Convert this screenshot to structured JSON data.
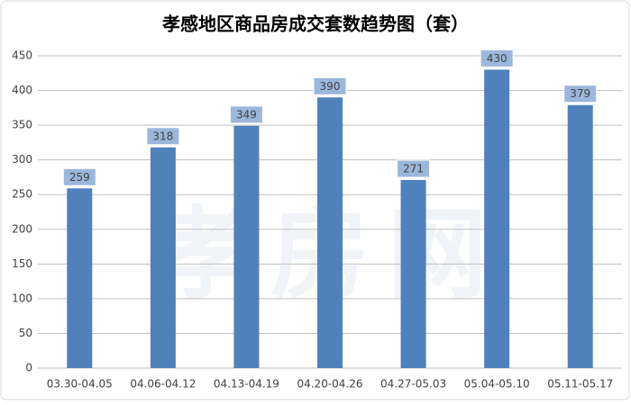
{
  "chart_data": {
    "type": "bar",
    "title": "孝感地区商品房成交套数趋势图（套）",
    "categories": [
      "03.30-04.05",
      "04.06-04.12",
      "04.13-04.19",
      "04.20-04.26",
      "04.27-05.03",
      "05.04-05.10",
      "05.11-05.17"
    ],
    "values": [
      259,
      318,
      349,
      390,
      271,
      430,
      379
    ],
    "color": "#4f81bd",
    "ylim": [
      0,
      450
    ],
    "yticks": [
      0,
      50,
      100,
      150,
      200,
      250,
      300,
      350,
      400,
      450
    ],
    "grid": true,
    "watermark": "孝房网"
  }
}
